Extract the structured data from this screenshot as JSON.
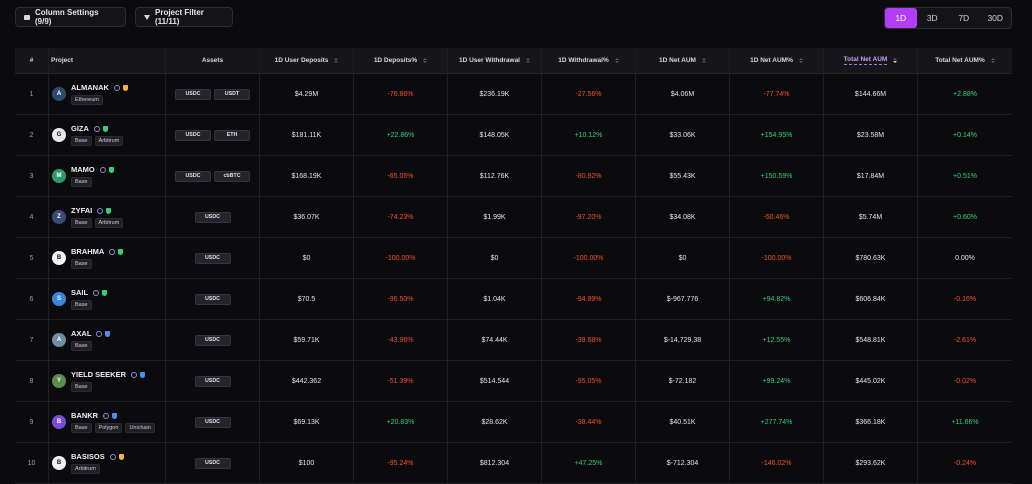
{
  "toolbar": {
    "column_settings_label": "Column Settings (9/9)",
    "project_filter_label": "Project Filter (11/11)"
  },
  "periods": [
    {
      "label": "1D",
      "active": true
    },
    {
      "label": "3D",
      "active": false
    },
    {
      "label": "7D",
      "active": false
    },
    {
      "label": "30D",
      "active": false
    }
  ],
  "colors": {
    "accent": "#b13ef5",
    "negative": "#f0502f",
    "positive": "#35d07f",
    "background": "#0b0b0d"
  },
  "columns": [
    {
      "label": "#"
    },
    {
      "label": "Project"
    },
    {
      "label": "Assets"
    },
    {
      "label": "1D User Deposits"
    },
    {
      "label": "1D Deposits%"
    },
    {
      "label": "1D User Withdrawal"
    },
    {
      "label": "1D Withdrawal%"
    },
    {
      "label": "1D Net AUM"
    },
    {
      "label": "1D Net AUM%"
    },
    {
      "label": "Total Net AUM"
    },
    {
      "label": "Total Net AUM%"
    }
  ],
  "rows": [
    {
      "index": "1",
      "name": "ALMANAK",
      "logo_color": "#2a4c6e",
      "logo_char": "A",
      "shield_color": "#f2b53a",
      "chains": [
        "Ethereum"
      ],
      "assets": [
        "USDC",
        "USDT"
      ],
      "deposits": "$4.29M",
      "deposits_pct": "-76.86%",
      "deposits_pct_sign": "neg",
      "withdrawal": "$236.19K",
      "withdrawal_pct": "-27.56%",
      "withdrawal_pct_sign": "neg",
      "net_aum": "$4.06M",
      "net_aum_pct": "-77.74%",
      "net_aum_pct_sign": "neg",
      "total_aum": "$144.66M",
      "total_aum_pct": "+2.88%",
      "total_aum_pct_sign": "pos"
    },
    {
      "index": "2",
      "name": "GIZA",
      "logo_color": "#e8e8ec",
      "logo_char": "G",
      "shield_color": "#35d07f",
      "chains": [
        "Base",
        "Arbitrum"
      ],
      "assets": [
        "USDC",
        "ETH"
      ],
      "deposits": "$181.11K",
      "deposits_pct": "+22.86%",
      "deposits_pct_sign": "pos",
      "withdrawal": "$148.05K",
      "withdrawal_pct": "+10.12%",
      "withdrawal_pct_sign": "pos",
      "net_aum": "$33.06K",
      "net_aum_pct": "+154.95%",
      "net_aum_pct_sign": "pos",
      "total_aum": "$23.58M",
      "total_aum_pct": "+0.14%",
      "total_aum_pct_sign": "pos"
    },
    {
      "index": "3",
      "name": "MAMO",
      "logo_color": "#2e9b6a",
      "logo_char": "M",
      "shield_color": "#35d07f",
      "chains": [
        "Base"
      ],
      "assets": [
        "USDC",
        "cbBTC"
      ],
      "deposits": "$168.19K",
      "deposits_pct": "-65.05%",
      "deposits_pct_sign": "neg",
      "withdrawal": "$112.76K",
      "withdrawal_pct": "-80.92%",
      "withdrawal_pct_sign": "neg",
      "net_aum": "$55.43K",
      "net_aum_pct": "+150.59%",
      "net_aum_pct_sign": "pos",
      "total_aum": "$17.84M",
      "total_aum_pct": "+0.51%",
      "total_aum_pct_sign": "pos"
    },
    {
      "index": "4",
      "name": "ZYFAI",
      "logo_color": "#3a4b7a",
      "logo_char": "Z",
      "shield_color": "#35d07f",
      "chains": [
        "Base",
        "Arbitrum"
      ],
      "assets": [
        "USDC"
      ],
      "deposits": "$36.07K",
      "deposits_pct": "-74.23%",
      "deposits_pct_sign": "neg",
      "withdrawal": "$1.99K",
      "withdrawal_pct": "-97.20%",
      "withdrawal_pct_sign": "neg",
      "net_aum": "$34.08K",
      "net_aum_pct": "-50.46%",
      "net_aum_pct_sign": "neg",
      "total_aum": "$5.74M",
      "total_aum_pct": "+0.60%",
      "total_aum_pct_sign": "pos"
    },
    {
      "index": "5",
      "name": "BRAHMA",
      "logo_color": "#f4f4f6",
      "logo_char": "B",
      "shield_color": "#35d07f",
      "chains": [
        "Base"
      ],
      "assets": [
        "USDC"
      ],
      "deposits": "$0",
      "deposits_pct": "-100.00%",
      "deposits_pct_sign": "neg",
      "withdrawal": "$0",
      "withdrawal_pct": "-100.00%",
      "withdrawal_pct_sign": "neg",
      "net_aum": "$0",
      "net_aum_pct": "-100.00%",
      "net_aum_pct_sign": "neg",
      "total_aum": "$780.63K",
      "total_aum_pct": "0.00%",
      "total_aum_pct_sign": "neu"
    },
    {
      "index": "6",
      "name": "SAIL",
      "logo_color": "#3b86d9",
      "logo_char": "S",
      "shield_color": "#35d07f",
      "chains": [
        "Base"
      ],
      "assets": [
        "USDC"
      ],
      "deposits": "$70.5",
      "deposits_pct": "-96.50%",
      "deposits_pct_sign": "neg",
      "withdrawal": "$1.04K",
      "withdrawal_pct": "-94.99%",
      "withdrawal_pct_sign": "neg",
      "net_aum": "$-967.776",
      "net_aum_pct": "+94.82%",
      "net_aum_pct_sign": "pos",
      "total_aum": "$606.84K",
      "total_aum_pct": "-0.16%",
      "total_aum_pct_sign": "neg"
    },
    {
      "index": "7",
      "name": "AXAL",
      "logo_color": "#6d8e9e",
      "logo_char": "A",
      "shield_color": "#4a90f0",
      "chains": [
        "Base"
      ],
      "assets": [
        "USDC"
      ],
      "deposits": "$59.71K",
      "deposits_pct": "-43.96%",
      "deposits_pct_sign": "neg",
      "withdrawal": "$74.44K",
      "withdrawal_pct": "-39.68%",
      "withdrawal_pct_sign": "neg",
      "net_aum": "$-14,729.38",
      "net_aum_pct": "+12.55%",
      "net_aum_pct_sign": "pos",
      "total_aum": "$548.81K",
      "total_aum_pct": "-2.61%",
      "total_aum_pct_sign": "neg"
    },
    {
      "index": "8",
      "name": "YIELD SEEKER",
      "logo_color": "#5e8a4a",
      "logo_char": "Y",
      "shield_color": "#4a90f0",
      "chains": [
        "Base"
      ],
      "assets": [
        "USDC"
      ],
      "deposits": "$442.362",
      "deposits_pct": "-51.39%",
      "deposits_pct_sign": "neg",
      "withdrawal": "$514.544",
      "withdrawal_pct": "-95.05%",
      "withdrawal_pct_sign": "neg",
      "net_aum": "$-72.182",
      "net_aum_pct": "+99.24%",
      "net_aum_pct_sign": "pos",
      "total_aum": "$445.02K",
      "total_aum_pct": "-0.02%",
      "total_aum_pct_sign": "neg"
    },
    {
      "index": "9",
      "name": "BANKR",
      "logo_color": "#7b4bd6",
      "logo_char": "B",
      "shield_color": "#4a90f0",
      "chains": [
        "Base",
        "Polygon",
        "Unichain"
      ],
      "assets": [
        "USDC"
      ],
      "deposits": "$69.13K",
      "deposits_pct": "+20.83%",
      "deposits_pct_sign": "pos",
      "withdrawal": "$28.62K",
      "withdrawal_pct": "-38.44%",
      "withdrawal_pct_sign": "neg",
      "net_aum": "$40.51K",
      "net_aum_pct": "+277.74%",
      "net_aum_pct_sign": "pos",
      "total_aum": "$366.18K",
      "total_aum_pct": "+11.66%",
      "total_aum_pct_sign": "pos"
    },
    {
      "index": "10",
      "name": "BASISOS",
      "logo_color": "#f0f0f3",
      "logo_char": "B",
      "shield_color": "#f2b53a",
      "chains": [
        "Arbitrum"
      ],
      "assets": [
        "USDC"
      ],
      "deposits": "$100",
      "deposits_pct": "-95.24%",
      "deposits_pct_sign": "neg",
      "withdrawal": "$812.304",
      "withdrawal_pct": "+47.25%",
      "withdrawal_pct_sign": "pos",
      "net_aum": "$-712.304",
      "net_aum_pct": "-146.02%",
      "net_aum_pct_sign": "neg",
      "total_aum": "$293.62K",
      "total_aum_pct": "-0.24%",
      "total_aum_pct_sign": "neg"
    }
  ]
}
